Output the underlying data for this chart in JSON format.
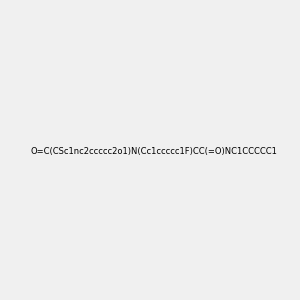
{
  "smiles": "O=C(CSc1nc2ccccc2o1)N(Cc1ccccc1F)CC(=O)NC1CCCCC1",
  "image_size": 300,
  "background_color": "#f0f0f0",
  "atom_colors": {
    "N": "#0000ff",
    "O": "#ff0000",
    "S": "#cccc00",
    "F": "#ff00ff"
  },
  "title": ""
}
